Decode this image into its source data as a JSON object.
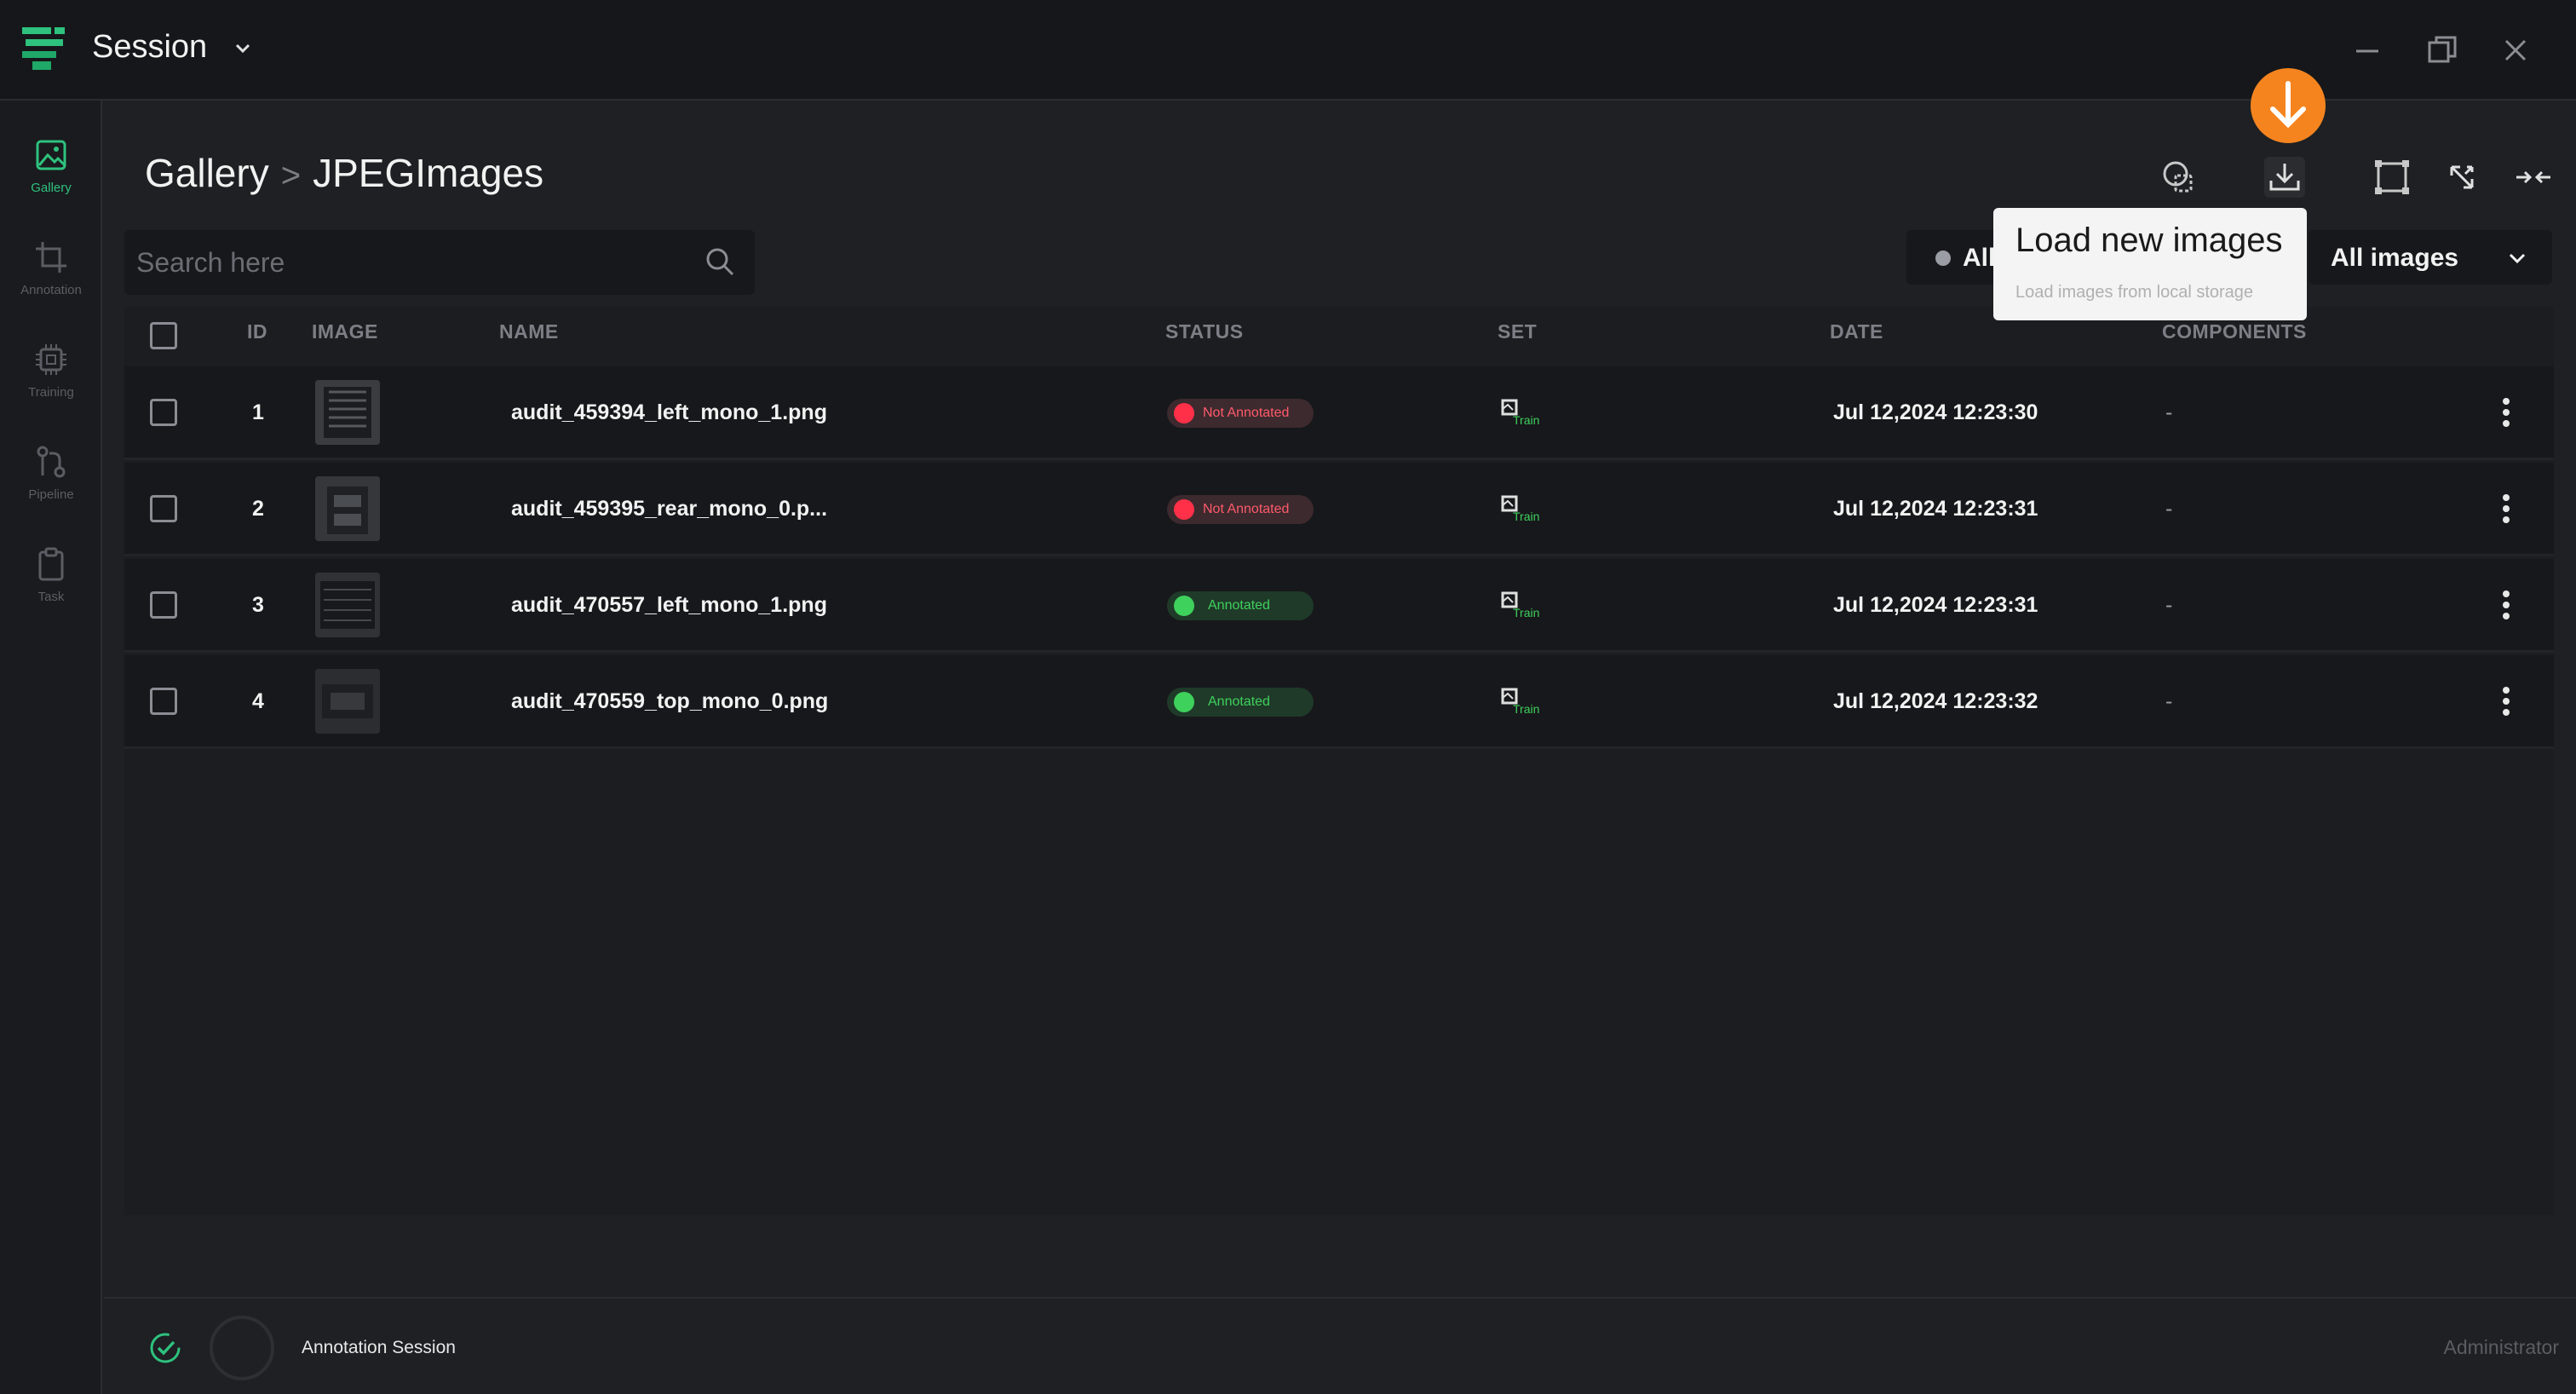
{
  "app": {
    "title": "Session"
  },
  "sidebar": {
    "items": [
      {
        "label": "Gallery",
        "icon": "image-icon",
        "active": true
      },
      {
        "label": "Annotation",
        "icon": "crop-icon",
        "active": false
      },
      {
        "label": "Training",
        "icon": "cpu-icon",
        "active": false
      },
      {
        "label": "Pipeline",
        "icon": "pipeline-icon",
        "active": false
      },
      {
        "label": "Task",
        "icon": "clipboard-icon",
        "active": false
      }
    ]
  },
  "breadcrumb": {
    "root": "Gallery",
    "separator": ">",
    "current": "JPEGImages"
  },
  "search": {
    "placeholder": "Search here",
    "value": ""
  },
  "filters": {
    "status_label": "All",
    "images_label": "All images"
  },
  "tooltip": {
    "title": "Load new images",
    "subtitle": "Load images from local storage"
  },
  "table": {
    "columns": [
      "ID",
      "IMAGE",
      "NAME",
      "STATUS",
      "SET",
      "DATE",
      "COMPONENTS"
    ],
    "rows": [
      {
        "id": "1",
        "name": "audit_459394_left_mono_1.png",
        "status": "Not Annotated",
        "status_kind": "bad",
        "set": "Train",
        "date": "Jul 12,2024 12:23:30",
        "components": "-"
      },
      {
        "id": "2",
        "name": "audit_459395_rear_mono_0.p...",
        "status": "Not Annotated",
        "status_kind": "bad",
        "set": "Train",
        "date": "Jul 12,2024 12:23:31",
        "components": "-"
      },
      {
        "id": "3",
        "name": "audit_470557_left_mono_1.png",
        "status": "Annotated",
        "status_kind": "good",
        "set": "Train",
        "date": "Jul 12,2024 12:23:31",
        "components": "-"
      },
      {
        "id": "4",
        "name": "audit_470559_top_mono_0.png",
        "status": "Annotated",
        "status_kind": "good",
        "set": "Train",
        "date": "Jul 12,2024 12:23:32",
        "components": "-"
      }
    ]
  },
  "footer": {
    "session": "Annotation Session",
    "user": "Administrator"
  },
  "colors": {
    "accent": "#2ec27e",
    "highlight": "#f5841f",
    "danger": "#ff3048",
    "success": "#3ed15c"
  }
}
